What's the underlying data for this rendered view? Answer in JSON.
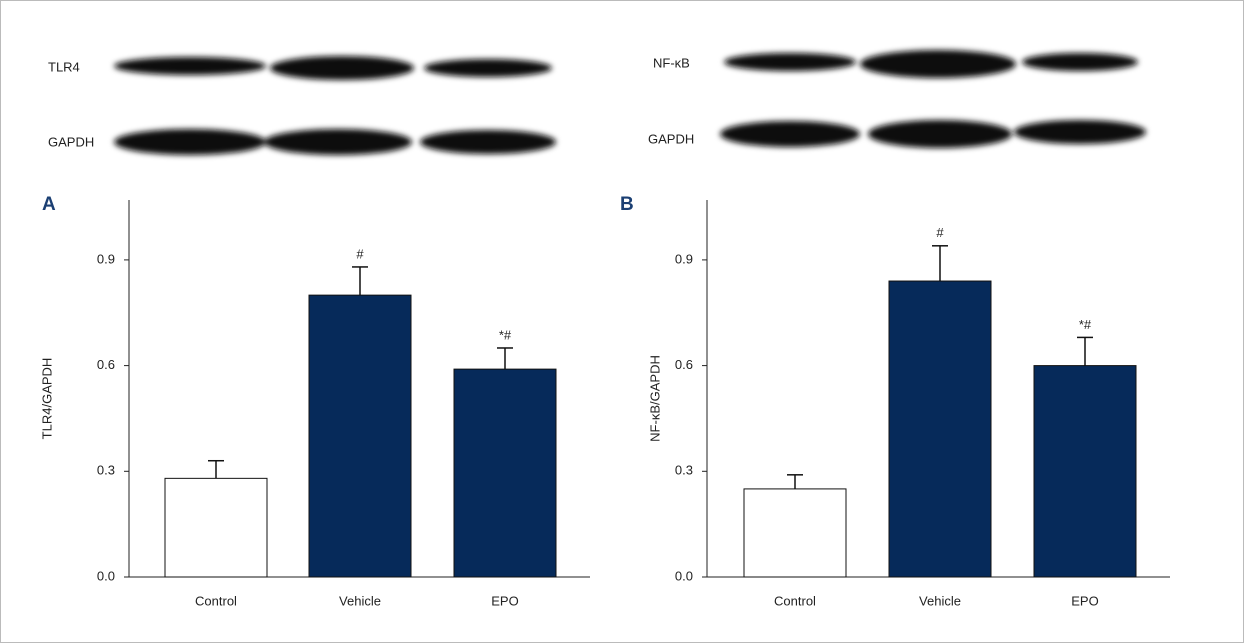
{
  "blots": [
    {
      "labels": [
        "TLR4",
        "GAPDH"
      ]
    },
    {
      "labels": [
        "NF-κB",
        "GAPDH"
      ]
    }
  ],
  "chart_data": [
    {
      "type": "bar",
      "panel": "A",
      "y_label": "TLR4/GAPDH",
      "categories": [
        "Control",
        "Vehicle",
        "EPO"
      ],
      "values": [
        0.28,
        0.8,
        0.59
      ],
      "errors": [
        0.05,
        0.08,
        0.06
      ],
      "annotations": [
        null,
        "#",
        "*#"
      ],
      "colors": [
        "#ffffff",
        "#062a5a",
        "#062a5a"
      ],
      "ylim": [
        0,
        1.07
      ],
      "yticks": [
        {
          "value": 0,
          "label": "0.0"
        },
        0.3,
        0.6,
        0.9
      ]
    },
    {
      "type": "bar",
      "panel": "B",
      "y_label": "NF-κB/GAPDH",
      "categories": [
        "Control",
        "Vehicle",
        "EPO"
      ],
      "values": [
        0.25,
        0.84,
        0.6
      ],
      "errors": [
        0.04,
        0.1,
        0.08
      ],
      "annotations": [
        null,
        "#",
        "*#"
      ],
      "colors": [
        "#ffffff",
        "#062a5a",
        "#062a5a"
      ],
      "ylim": [
        0,
        1.07
      ],
      "yticks": [
        {
          "value": 0,
          "label": "0.0"
        },
        0.3,
        0.6,
        0.9
      ]
    }
  ]
}
